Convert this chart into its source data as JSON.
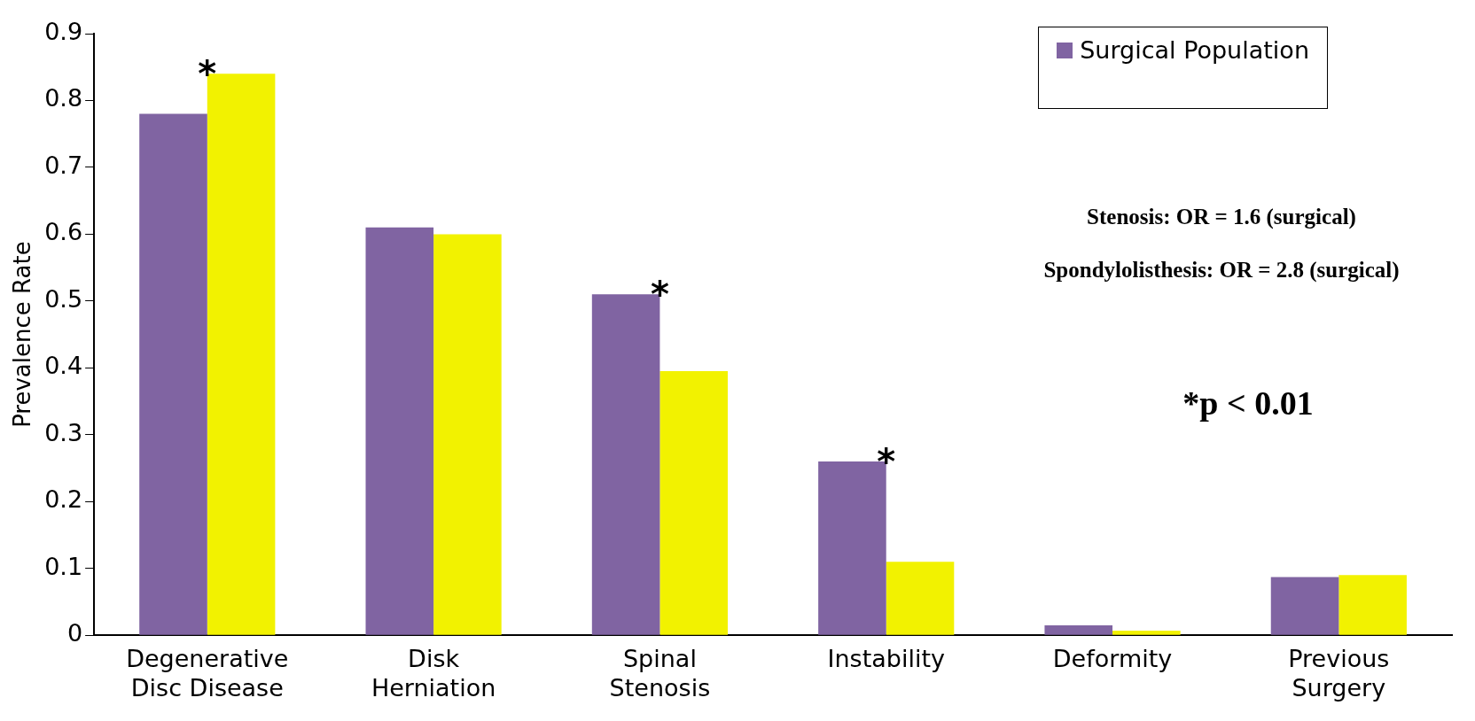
{
  "chart_data": {
    "type": "bar",
    "ylabel": "Prevalence Rate",
    "categories": [
      "Degenerative Disc Disease",
      "Disk Herniation",
      "Spinal Stenosis",
      "Instability",
      "Deformity",
      "Previous Surgery"
    ],
    "series": [
      {
        "name": "Surgical Population",
        "color": "#8064a2",
        "values": [
          0.78,
          0.61,
          0.51,
          0.26,
          0.015,
          0.087
        ]
      },
      {
        "color": "#f2f200",
        "values": [
          0.84,
          0.6,
          0.395,
          0.11,
          0.007,
          0.09
        ]
      }
    ],
    "ylim": [
      0,
      0.9
    ],
    "yticks": [
      0,
      0.1,
      0.2,
      0.3,
      0.4,
      0.5,
      0.6,
      0.7,
      0.8,
      0.9
    ],
    "grid": false,
    "legend": "top right",
    "annotations": [
      {
        "text": "*",
        "x": "Degenerative Disc Disease",
        "y": 0.84
      },
      {
        "text": "*",
        "x": "Spinal Stenosis",
        "y": 0.51
      },
      {
        "text": "*",
        "x": "Instability",
        "y": 0.26
      },
      "Stenosis: OR = 1.6 (surgical)",
      "Spondylolisthesis: OR = 2.8 (surgical)",
      "*p < 0.01"
    ]
  }
}
